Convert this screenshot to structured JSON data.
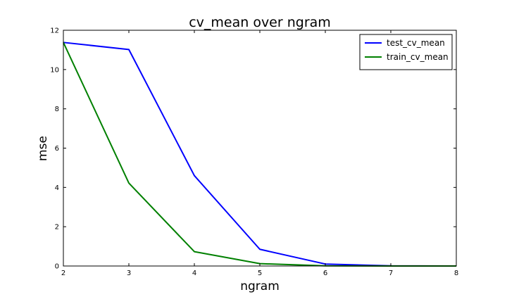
{
  "chart_data": {
    "type": "line",
    "title": "cv_mean over ngram",
    "xlabel": "ngram",
    "ylabel": "mse",
    "x": [
      2,
      3,
      4,
      5,
      6,
      7,
      8
    ],
    "xlim": [
      2,
      8
    ],
    "ylim": [
      0,
      12
    ],
    "xticks": [
      2,
      3,
      4,
      5,
      6,
      7,
      8
    ],
    "yticks": [
      0,
      2,
      4,
      6,
      8,
      10,
      12
    ],
    "grid": false,
    "legend_position": "top-right",
    "series": [
      {
        "name": "test_cv_mean",
        "color": "#0000ff",
        "values": [
          11.38,
          11.02,
          4.6,
          0.85,
          0.1,
          0.01,
          0.0
        ]
      },
      {
        "name": "train_cv_mean",
        "color": "#008000",
        "values": [
          11.38,
          4.22,
          0.73,
          0.12,
          0.01,
          0.0,
          0.0
        ]
      }
    ]
  }
}
